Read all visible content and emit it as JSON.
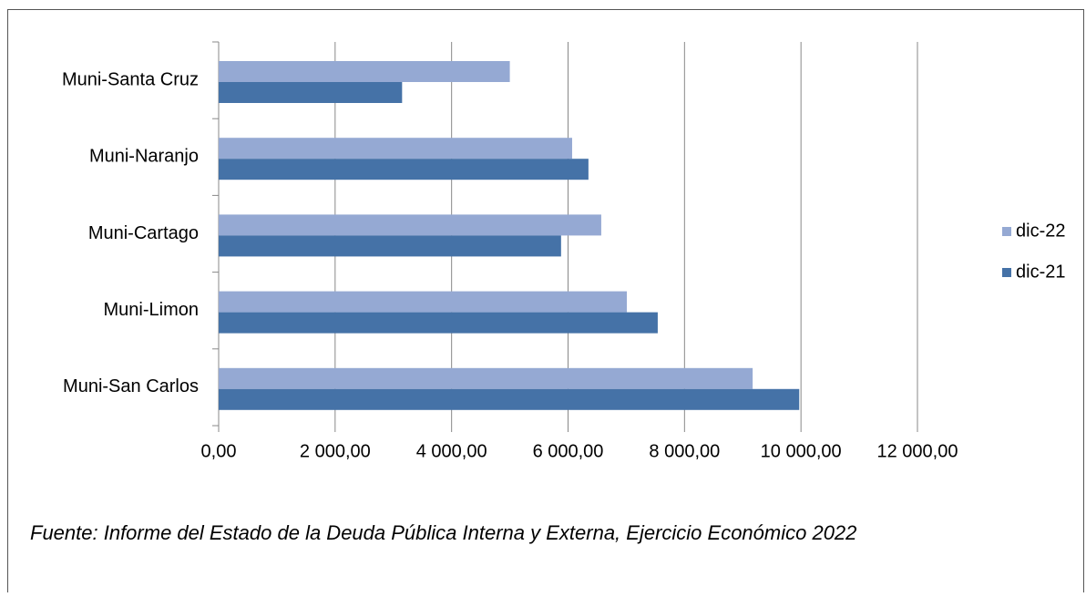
{
  "chart_data": {
    "type": "hbar",
    "categories": [
      "Muni-Santa Cruz",
      "Muni-Naranjo",
      "Muni-Cartago",
      "Muni-Limon",
      "Muni-San Carlos"
    ],
    "series": [
      {
        "name": "dic-22",
        "color": "#95a9d3",
        "values": [
          5000,
          6070,
          6570,
          7010,
          9170
        ]
      },
      {
        "name": "dic-21",
        "color": "#4572a7",
        "values": [
          3150,
          6350,
          5880,
          7540,
          9970
        ]
      }
    ],
    "xlim": [
      0,
      12000
    ],
    "xticks": [
      {
        "value": 0,
        "label": "0,00"
      },
      {
        "value": 2000,
        "label": "2 000,00"
      },
      {
        "value": 4000,
        "label": "4 000,00"
      },
      {
        "value": 6000,
        "label": "6 000,00"
      },
      {
        "value": 8000,
        "label": "8 000,00"
      },
      {
        "value": 10000,
        "label": "10 000,00"
      },
      {
        "value": 12000,
        "label": "12 000,00"
      }
    ],
    "grid": true,
    "legend": "right",
    "source": "Fuente: Informe del Estado de la Deuda Pública Interna y Externa, Ejercicio Económico 2022"
  }
}
